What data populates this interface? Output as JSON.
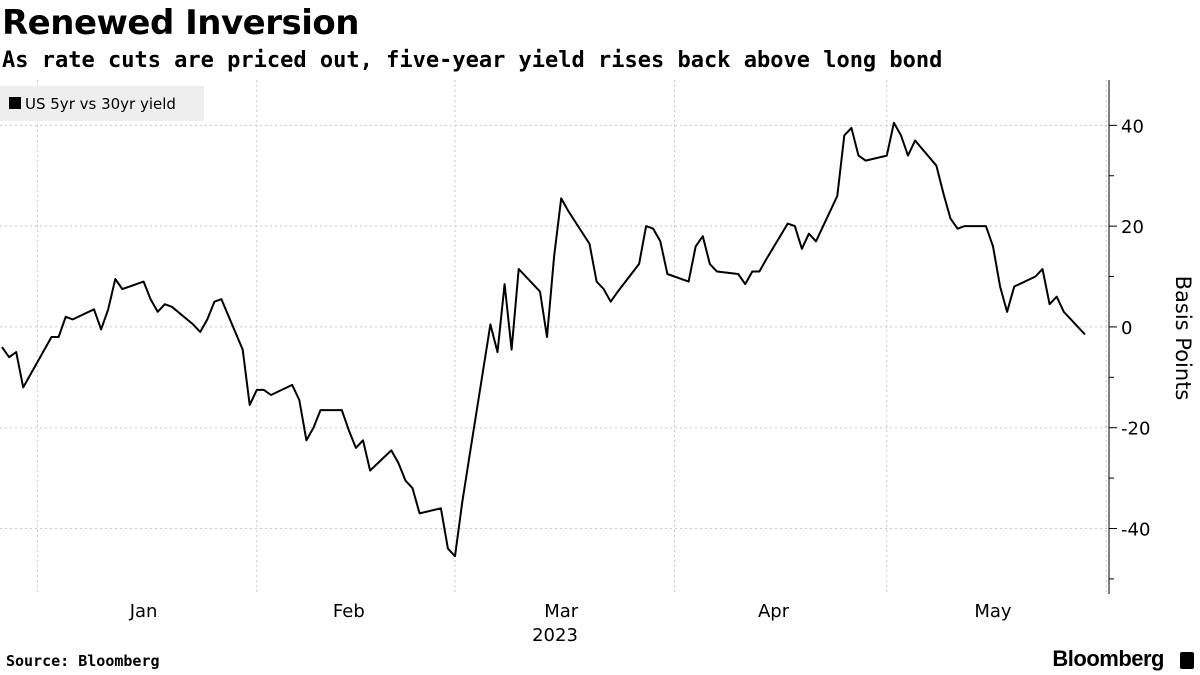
{
  "header": {
    "title": "Renewed Inversion",
    "subtitle": "As rate cuts are priced out, five-year yield rises back above long bond"
  },
  "footer": {
    "source": "Source: Bloomberg",
    "brand": "Bloomberg"
  },
  "colors": {
    "line": "#000000",
    "grid": "#c8c8c8",
    "legend_bg": "#eeeeee",
    "background": "#ffffff"
  },
  "icons": {
    "brand_mark": "terminal-icon"
  },
  "chart_data": {
    "type": "line",
    "title": "Renewed Inversion",
    "subtitle": "As rate cuts are priced out, five-year yield rises back above long bond",
    "ylabel": "Basis Points",
    "xlabel": "2023",
    "ylim": [
      -53,
      49
    ],
    "yticks": [
      -40,
      -20,
      0,
      20,
      40
    ],
    "ytick_labels": [
      "-40",
      "-20",
      "0",
      "20",
      "40"
    ],
    "y_axis_position": "right",
    "grid": true,
    "legend_position": "top-left",
    "x_months": [
      "Jan",
      "Feb",
      "Mar",
      "Apr",
      "May"
    ],
    "series": [
      {
        "name": "US 5yr vs 30yr yield",
        "color": "#000000",
        "points": [
          [
            "2022-12-27",
            -4
          ],
          [
            "2022-12-28",
            -6
          ],
          [
            "2022-12-29",
            -5
          ],
          [
            "2022-12-30",
            -12
          ],
          [
            "2023-01-03",
            -2
          ],
          [
            "2023-01-04",
            -2
          ],
          [
            "2023-01-05",
            2
          ],
          [
            "2023-01-06",
            1.5
          ],
          [
            "2023-01-09",
            3.5
          ],
          [
            "2023-01-10",
            -0.5
          ],
          [
            "2023-01-11",
            3.5
          ],
          [
            "2023-01-12",
            9.5
          ],
          [
            "2023-01-13",
            7.5
          ],
          [
            "2023-01-16",
            9
          ],
          [
            "2023-01-17",
            5.5
          ],
          [
            "2023-01-18",
            3
          ],
          [
            "2023-01-19",
            4.5
          ],
          [
            "2023-01-20",
            4
          ],
          [
            "2023-01-23",
            0.5
          ],
          [
            "2023-01-24",
            -1
          ],
          [
            "2023-01-25",
            1.5
          ],
          [
            "2023-01-26",
            5
          ],
          [
            "2023-01-27",
            5.5
          ],
          [
            "2023-01-30",
            -4.5
          ],
          [
            "2023-01-31",
            -15.5
          ],
          [
            "2023-02-01",
            -12.5
          ],
          [
            "2023-02-02",
            -12.5
          ],
          [
            "2023-02-03",
            -13.5
          ],
          [
            "2023-02-06",
            -11.5
          ],
          [
            "2023-02-07",
            -14.5
          ],
          [
            "2023-02-08",
            -22.5
          ],
          [
            "2023-02-09",
            -20
          ],
          [
            "2023-02-10",
            -16.5
          ],
          [
            "2023-02-13",
            -16.5
          ],
          [
            "2023-02-14",
            -20.5
          ],
          [
            "2023-02-15",
            -24
          ],
          [
            "2023-02-16",
            -22.5
          ],
          [
            "2023-02-17",
            -28.5
          ],
          [
            "2023-02-20",
            -24.5
          ],
          [
            "2023-02-21",
            -27
          ],
          [
            "2023-02-22",
            -30.5
          ],
          [
            "2023-02-23",
            -32
          ],
          [
            "2023-02-24",
            -37
          ],
          [
            "2023-02-27",
            -36
          ],
          [
            "2023-02-28",
            -44
          ],
          [
            "2023-03-01",
            -45.5
          ],
          [
            "2023-03-02",
            -35
          ],
          [
            "2023-03-03",
            -26
          ],
          [
            "2023-03-06",
            0.5
          ],
          [
            "2023-03-07",
            -5
          ],
          [
            "2023-03-08",
            8.5
          ],
          [
            "2023-03-09",
            -4.5
          ],
          [
            "2023-03-10",
            11.5
          ],
          [
            "2023-03-13",
            7
          ],
          [
            "2023-03-14",
            -2
          ],
          [
            "2023-03-15",
            14
          ],
          [
            "2023-03-16",
            25.5
          ],
          [
            "2023-03-17",
            23
          ],
          [
            "2023-03-20",
            16.5
          ],
          [
            "2023-03-21",
            9
          ],
          [
            "2023-03-22",
            7.5
          ],
          [
            "2023-03-23",
            5
          ],
          [
            "2023-03-24",
            7
          ],
          [
            "2023-03-27",
            12.5
          ],
          [
            "2023-03-28",
            20
          ],
          [
            "2023-03-29",
            19.5
          ],
          [
            "2023-03-30",
            17
          ],
          [
            "2023-03-31",
            10.5
          ],
          [
            "2023-04-03",
            9
          ],
          [
            "2023-04-04",
            16
          ],
          [
            "2023-04-05",
            18
          ],
          [
            "2023-04-06",
            12.5
          ],
          [
            "2023-04-07",
            11
          ],
          [
            "2023-04-10",
            10.5
          ],
          [
            "2023-04-11",
            8.5
          ],
          [
            "2023-04-12",
            11
          ],
          [
            "2023-04-13",
            11
          ],
          [
            "2023-04-14",
            13.5
          ],
          [
            "2023-04-17",
            20.5
          ],
          [
            "2023-04-18",
            20
          ],
          [
            "2023-04-19",
            15.5
          ],
          [
            "2023-04-20",
            18.5
          ],
          [
            "2023-04-21",
            17
          ],
          [
            "2023-04-24",
            26
          ],
          [
            "2023-04-25",
            38
          ],
          [
            "2023-04-26",
            39.5
          ],
          [
            "2023-04-27",
            34
          ],
          [
            "2023-04-28",
            33
          ],
          [
            "2023-05-01",
            34
          ],
          [
            "2023-05-02",
            40.5
          ],
          [
            "2023-05-03",
            38
          ],
          [
            "2023-05-04",
            34
          ],
          [
            "2023-05-05",
            37
          ],
          [
            "2023-05-08",
            32
          ],
          [
            "2023-05-09",
            26.5
          ],
          [
            "2023-05-10",
            21.5
          ],
          [
            "2023-05-11",
            19.5
          ],
          [
            "2023-05-12",
            20
          ],
          [
            "2023-05-15",
            20
          ],
          [
            "2023-05-16",
            16
          ],
          [
            "2023-05-17",
            8
          ],
          [
            "2023-05-18",
            3
          ],
          [
            "2023-05-19",
            8
          ],
          [
            "2023-05-22",
            10
          ],
          [
            "2023-05-23",
            11.5
          ],
          [
            "2023-05-24",
            4.5
          ],
          [
            "2023-05-25",
            6
          ],
          [
            "2023-05-26",
            3
          ],
          [
            "2023-05-29",
            -1.5
          ]
        ]
      }
    ]
  }
}
